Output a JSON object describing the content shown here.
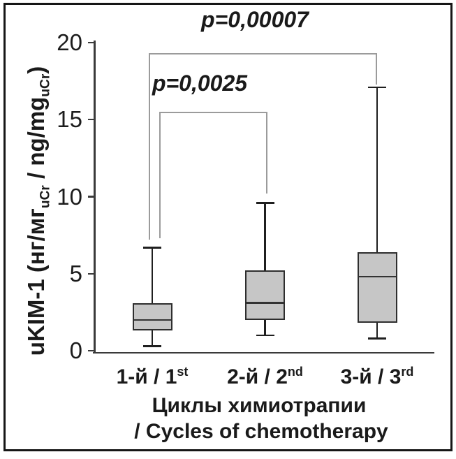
{
  "figure": {
    "background": "#ffffff",
    "border_color": "#161616"
  },
  "chart_data": {
    "type": "boxplot",
    "title": "",
    "ylabel_parts": [
      {
        "text": "uKIM-1 (нг/мг"
      },
      {
        "text": "uCr",
        "subscript": true
      },
      {
        "text": " / ng/mg"
      },
      {
        "text": "uCr",
        "subscript": true
      },
      {
        "text": ")"
      }
    ],
    "xlabel_lines": [
      "Циклы химиотрапии",
      "/ Cycles of chemotherapy"
    ],
    "categories": [
      {
        "ru": "1-й",
        "separator": " / ",
        "num": "1",
        "ordinal": "st"
      },
      {
        "ru": "2-й",
        "separator": " / ",
        "num": "2",
        "ordinal": "nd"
      },
      {
        "ru": "3-й",
        "separator": " / ",
        "num": "3",
        "ordinal": "rd"
      }
    ],
    "yticks": [
      0,
      5,
      10,
      15,
      20
    ],
    "ylim": [
      0,
      20
    ],
    "grid": false,
    "series": [
      {
        "category": "1-й / 1st",
        "whisker_low": 0.3,
        "q1": 1.3,
        "median": 2.0,
        "q3": 3.1,
        "whisker_high": 6.7
      },
      {
        "category": "2-й / 2nd",
        "whisker_low": 1.0,
        "q1": 2.0,
        "median": 3.1,
        "q3": 5.2,
        "whisker_high": 9.6
      },
      {
        "category": "3-й / 3rd",
        "whisker_low": 0.8,
        "q1": 1.8,
        "median": 4.8,
        "q3": 6.4,
        "whisker_high": 17.1
      }
    ],
    "significance_brackets": [
      {
        "label": "p=0,0025",
        "groups": [
          0,
          1
        ],
        "top_value": 15.5,
        "left_end_value": 7.3,
        "right_end_value": 10.2
      },
      {
        "label": "p=0,00007",
        "groups": [
          0,
          2
        ],
        "top_value": 19.3,
        "left_end_value": 7.2,
        "right_end_value": 17.3
      }
    ],
    "colors": {
      "box_fill": "#c6c6c6",
      "box_border": "#2e2e2e",
      "median": "#333333",
      "whisker": "#1f1f1f",
      "bracket": "#9b9b9b",
      "text": "#1a1a1a",
      "axis": "#3a3a3a"
    }
  }
}
